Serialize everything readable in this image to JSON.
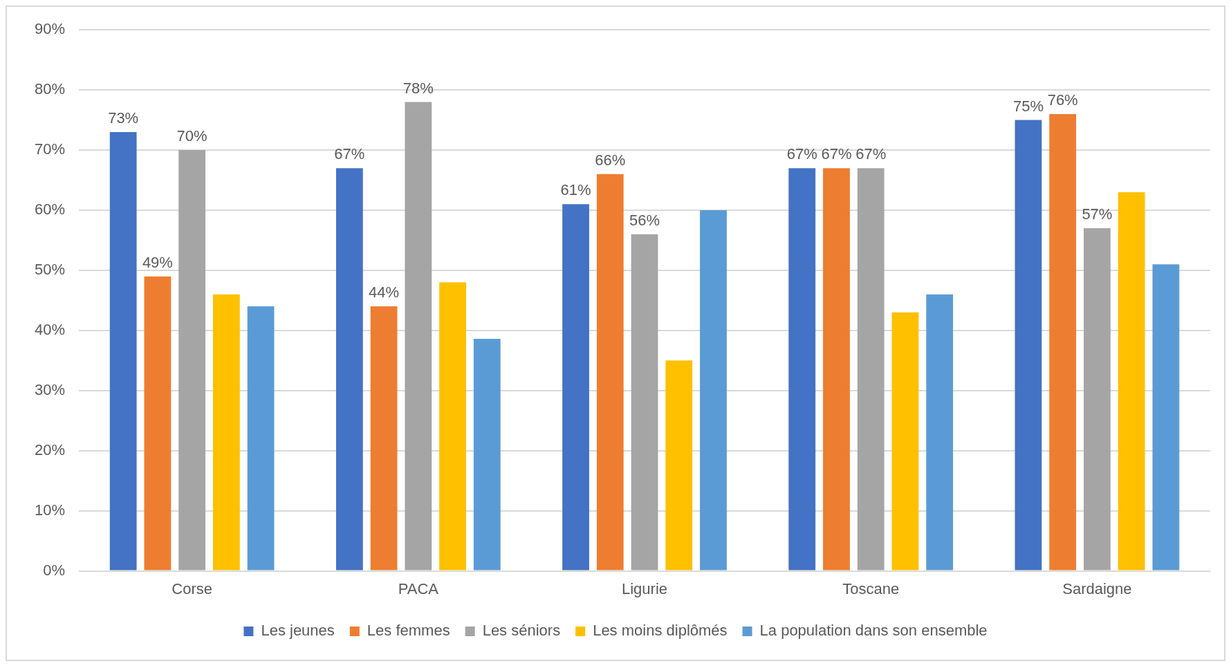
{
  "chart_data": {
    "type": "bar",
    "categories": [
      "Corse",
      "PACA",
      "Ligurie",
      "Toscane",
      "Sardaigne"
    ],
    "series": [
      {
        "name": "Les jeunes",
        "color": "#4472c4",
        "values": [
          73,
          67,
          61,
          67,
          75
        ],
        "value_labels": [
          "73%",
          "67%",
          "61%",
          "67%",
          "75%"
        ]
      },
      {
        "name": "Les femmes",
        "color": "#ed7d31",
        "values": [
          49,
          44,
          66,
          67,
          76
        ],
        "value_labels": [
          "49%",
          "44%",
          "66%",
          "67%",
          "76%"
        ]
      },
      {
        "name": "Les séniors",
        "color": "#a5a5a5",
        "values": [
          70,
          78,
          56,
          67,
          57
        ],
        "value_labels": [
          "70%",
          "78%",
          "56%",
          "67%",
          "57%"
        ]
      },
      {
        "name": "Les moins diplômés",
        "color": "#ffc000",
        "values": [
          46,
          48,
          35,
          43,
          63
        ]
      },
      {
        "name": "La population dans son ensemble",
        "color": "#5b9bd5",
        "values": [
          44,
          38.6,
          60,
          46,
          51
        ]
      }
    ],
    "ylim": [
      0,
      90
    ],
    "yticks": [
      {
        "value": 0,
        "label": "0%"
      },
      {
        "value": 10,
        "label": "10%"
      },
      {
        "value": 20,
        "label": "20%"
      },
      {
        "value": 30,
        "label": "30%"
      },
      {
        "value": 40,
        "label": "40%"
      },
      {
        "value": 50,
        "label": "50%"
      },
      {
        "value": 60,
        "label": "60%"
      },
      {
        "value": 70,
        "label": "70%"
      },
      {
        "value": 80,
        "label": "80%"
      },
      {
        "value": 90,
        "label": "90%"
      }
    ],
    "grid": "y",
    "legend": "bottom"
  }
}
